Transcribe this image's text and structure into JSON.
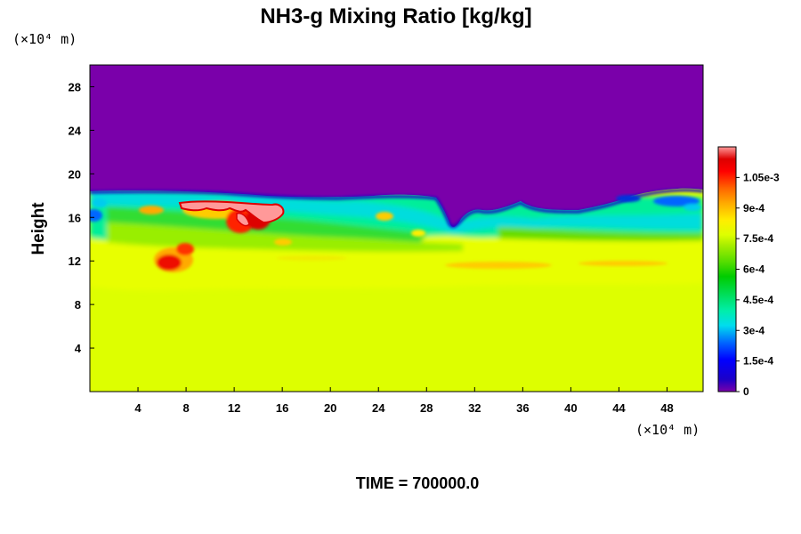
{
  "chart_data": {
    "type": "heatmap",
    "title": "NH3-g Mixing Ratio [kg/kg]",
    "xlabel": "",
    "ylabel": "Height",
    "x_unit": "(×10⁴ m)",
    "y_unit": "(×10⁴ m)",
    "xlim": [
      0,
      51
    ],
    "ylim": [
      0,
      30
    ],
    "x_ticks": [
      "4",
      "8",
      "12",
      "16",
      "20",
      "24",
      "28",
      "32",
      "36",
      "40",
      "44",
      "48"
    ],
    "y_ticks": [
      "4",
      "8",
      "12",
      "16",
      "20",
      "24",
      "28"
    ],
    "colorbar": {
      "min": 0,
      "max": 0.0012,
      "tick_labels": [
        "0",
        "1.5e-4",
        "3e-4",
        "4.5e-4",
        "6e-4",
        "7.5e-4",
        "9e-4",
        "1.05e-3"
      ],
      "tick_values": [
        0,
        0.00015,
        0.0003,
        0.00045,
        0.0006,
        0.00075,
        0.0009,
        0.00105
      ]
    },
    "regions": [
      {
        "description": "upper layer",
        "height_range": [
          18,
          30
        ],
        "value": 0
      },
      {
        "description": "mixing layer",
        "height_range": [
          14,
          18
        ],
        "value": 0.0004
      },
      {
        "description": "lower layer",
        "height_range": [
          9.5,
          13
        ],
        "value": 0.00078
      },
      {
        "description": "near surface",
        "height_range": [
          0,
          9.5
        ],
        "value": 0.00072
      }
    ],
    "time_label": "TIME = 700000.0"
  }
}
